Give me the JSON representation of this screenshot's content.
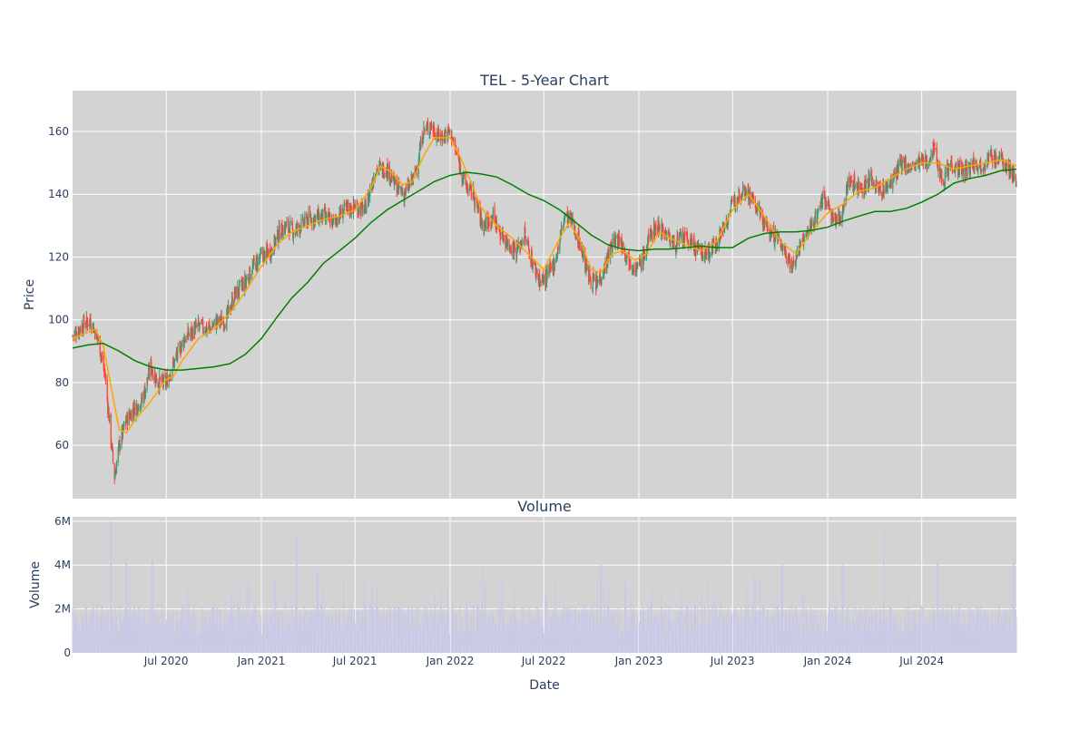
{
  "chart_data": [
    {
      "type": "candlestick",
      "title": "TEL - 5-Year Chart",
      "xlabel": "",
      "ylabel": "Price",
      "x_range": [
        "2020-01-02",
        "2024-12-31"
      ],
      "ylim": [
        43,
        173
      ],
      "y_ticks": [
        60,
        80,
        100,
        120,
        140,
        160
      ],
      "x_tick_labels": [
        "Jul 2020",
        "Jan 2021",
        "Jul 2021",
        "Jan 2022",
        "Jul 2022",
        "Jan 2023",
        "Jul 2023",
        "Jan 2024",
        "Jul 2024"
      ],
      "x_tick_dates": [
        "2020-07-01",
        "2021-01-01",
        "2021-07-01",
        "2022-01-01",
        "2022-07-01",
        "2023-01-01",
        "2023-07-01",
        "2024-01-01",
        "2024-07-01"
      ],
      "grid": true,
      "legend": "none",
      "colors": {
        "background": "#d3d3d3",
        "grid": "#ffffff",
        "increasing": "#3d9970",
        "decreasing": "#ff4136",
        "ma_short": "#ffa500",
        "ma_long": "#008000"
      },
      "price_path": [
        [
          "2020-01-02",
          95
        ],
        [
          "2020-01-20",
          98
        ],
        [
          "2020-02-05",
          100
        ],
        [
          "2020-02-20",
          94
        ],
        [
          "2020-03-05",
          82
        ],
        [
          "2020-03-16",
          62
        ],
        [
          "2020-03-23",
          50
        ],
        [
          "2020-04-01",
          60
        ],
        [
          "2020-04-15",
          68
        ],
        [
          "2020-05-01",
          72
        ],
        [
          "2020-05-15",
          74
        ],
        [
          "2020-06-01",
          85
        ],
        [
          "2020-06-15",
          80
        ],
        [
          "2020-07-01",
          80
        ],
        [
          "2020-07-20",
          88
        ],
        [
          "2020-08-05",
          94
        ],
        [
          "2020-09-01",
          98
        ],
        [
          "2020-09-20",
          97
        ],
        [
          "2020-10-05",
          99
        ],
        [
          "2020-10-25",
          100
        ],
        [
          "2020-11-10",
          108
        ],
        [
          "2020-12-01",
          112
        ],
        [
          "2020-12-20",
          118
        ],
        [
          "2021-01-01",
          120
        ],
        [
          "2021-01-20",
          122
        ],
        [
          "2021-02-05",
          128
        ],
        [
          "2021-02-20",
          130
        ],
        [
          "2021-03-05",
          128
        ],
        [
          "2021-04-01",
          132
        ],
        [
          "2021-05-01",
          133
        ],
        [
          "2021-05-20",
          131
        ],
        [
          "2021-06-10",
          135
        ],
        [
          "2021-07-01",
          136
        ],
        [
          "2021-07-20",
          135
        ],
        [
          "2021-08-10",
          148
        ],
        [
          "2021-09-01",
          148
        ],
        [
          "2021-09-20",
          142
        ],
        [
          "2021-10-05",
          140
        ],
        [
          "2021-10-25",
          146
        ],
        [
          "2021-11-10",
          160
        ],
        [
          "2021-11-25",
          162
        ],
        [
          "2021-12-10",
          158
        ],
        [
          "2022-01-01",
          160
        ],
        [
          "2022-01-15",
          152
        ],
        [
          "2022-01-30",
          143
        ],
        [
          "2022-02-15",
          140
        ],
        [
          "2022-03-05",
          130
        ],
        [
          "2022-03-25",
          133
        ],
        [
          "2022-04-10",
          127
        ],
        [
          "2022-04-25",
          124
        ],
        [
          "2022-05-10",
          122
        ],
        [
          "2022-05-25",
          127
        ],
        [
          "2022-06-10",
          118
        ],
        [
          "2022-06-25",
          112
        ],
        [
          "2022-07-10",
          114
        ],
        [
          "2022-07-25",
          120
        ],
        [
          "2022-08-10",
          133
        ],
        [
          "2022-08-25",
          131
        ],
        [
          "2022-09-10",
          124
        ],
        [
          "2022-09-25",
          114
        ],
        [
          "2022-10-10",
          111
        ],
        [
          "2022-10-25",
          116
        ],
        [
          "2022-11-10",
          124
        ],
        [
          "2022-11-25",
          126
        ],
        [
          "2022-12-10",
          120
        ],
        [
          "2022-12-28",
          116
        ],
        [
          "2023-01-10",
          120
        ],
        [
          "2023-01-25",
          128
        ],
        [
          "2023-02-10",
          130
        ],
        [
          "2023-02-25",
          127
        ],
        [
          "2023-03-10",
          124
        ],
        [
          "2023-03-25",
          126
        ],
        [
          "2023-04-10",
          125
        ],
        [
          "2023-04-25",
          122
        ],
        [
          "2023-05-10",
          121
        ],
        [
          "2023-05-25",
          123
        ],
        [
          "2023-06-10",
          128
        ],
        [
          "2023-06-25",
          134
        ],
        [
          "2023-07-10",
          140
        ],
        [
          "2023-07-25",
          142
        ],
        [
          "2023-08-10",
          138
        ],
        [
          "2023-08-25",
          133
        ],
        [
          "2023-09-10",
          128
        ],
        [
          "2023-09-25",
          126
        ],
        [
          "2023-10-10",
          122
        ],
        [
          "2023-10-25",
          117
        ],
        [
          "2023-11-10",
          124
        ],
        [
          "2023-11-25",
          128
        ],
        [
          "2023-12-10",
          133
        ],
        [
          "2023-12-25",
          140
        ],
        [
          "2024-01-10",
          132
        ],
        [
          "2024-01-25",
          132
        ],
        [
          "2024-02-10",
          144
        ],
        [
          "2024-02-25",
          143
        ],
        [
          "2024-03-10",
          142
        ],
        [
          "2024-03-25",
          145
        ],
        [
          "2024-04-10",
          141
        ],
        [
          "2024-04-25",
          142
        ],
        [
          "2024-05-10",
          146
        ],
        [
          "2024-05-25",
          150
        ],
        [
          "2024-06-10",
          148
        ],
        [
          "2024-06-25",
          150
        ],
        [
          "2024-07-10",
          150
        ],
        [
          "2024-07-25",
          155
        ],
        [
          "2024-08-10",
          144
        ],
        [
          "2024-08-25",
          150
        ],
        [
          "2024-09-10",
          148
        ],
        [
          "2024-09-25",
          147
        ],
        [
          "2024-10-10",
          150
        ],
        [
          "2024-10-25",
          149
        ],
        [
          "2024-11-10",
          152
        ],
        [
          "2024-11-25",
          151
        ],
        [
          "2024-12-10",
          150
        ],
        [
          "2024-12-31",
          144
        ]
      ],
      "ma_short": [
        [
          "2020-01-02",
          94
        ],
        [
          "2020-02-01",
          96
        ],
        [
          "2020-02-15",
          97
        ],
        [
          "2020-03-01",
          92
        ],
        [
          "2020-03-15",
          80
        ],
        [
          "2020-04-01",
          65
        ],
        [
          "2020-04-15",
          64
        ],
        [
          "2020-05-01",
          68
        ],
        [
          "2020-06-01",
          74
        ],
        [
          "2020-07-01",
          81
        ],
        [
          "2020-07-15",
          82
        ],
        [
          "2020-08-01",
          87
        ],
        [
          "2020-09-01",
          94
        ],
        [
          "2020-10-01",
          97
        ],
        [
          "2020-11-01",
          102
        ],
        [
          "2020-12-01",
          109
        ],
        [
          "2021-01-01",
          117
        ],
        [
          "2021-02-01",
          124
        ],
        [
          "2021-03-01",
          128
        ],
        [
          "2021-04-01",
          130
        ],
        [
          "2021-05-01",
          132
        ],
        [
          "2021-06-01",
          133
        ],
        [
          "2021-07-01",
          135
        ],
        [
          "2021-08-01",
          142
        ],
        [
          "2021-08-20",
          149
        ],
        [
          "2021-09-10",
          147
        ],
        [
          "2021-10-01",
          143
        ],
        [
          "2021-10-20",
          144
        ],
        [
          "2021-11-10",
          152
        ],
        [
          "2021-12-01",
          158
        ],
        [
          "2022-01-01",
          158
        ],
        [
          "2022-01-20",
          152
        ],
        [
          "2022-02-10",
          144
        ],
        [
          "2022-03-01",
          136
        ],
        [
          "2022-04-01",
          130
        ],
        [
          "2022-05-01",
          126
        ],
        [
          "2022-06-01",
          121
        ],
        [
          "2022-07-01",
          116
        ],
        [
          "2022-08-01",
          126
        ],
        [
          "2022-08-20",
          131
        ],
        [
          "2022-09-10",
          125
        ],
        [
          "2022-10-01",
          116
        ],
        [
          "2022-10-20",
          115
        ],
        [
          "2022-11-10",
          121
        ],
        [
          "2022-12-01",
          122
        ],
        [
          "2022-12-25",
          119
        ],
        [
          "2023-01-15",
          121
        ],
        [
          "2023-02-10",
          128
        ],
        [
          "2023-03-01",
          126
        ],
        [
          "2023-04-01",
          124
        ],
        [
          "2023-05-01",
          122
        ],
        [
          "2023-06-01",
          125
        ],
        [
          "2023-07-01",
          135
        ],
        [
          "2023-08-01",
          140
        ],
        [
          "2023-09-01",
          133
        ],
        [
          "2023-10-01",
          125
        ],
        [
          "2023-11-01",
          121
        ],
        [
          "2023-12-01",
          128
        ],
        [
          "2024-01-01",
          134
        ],
        [
          "2024-02-01",
          137
        ],
        [
          "2024-03-01",
          141
        ],
        [
          "2024-04-01",
          142
        ],
        [
          "2024-05-01",
          145
        ],
        [
          "2024-06-01",
          148
        ],
        [
          "2024-07-01",
          150
        ],
        [
          "2024-08-01",
          150
        ],
        [
          "2024-09-01",
          148
        ],
        [
          "2024-10-01",
          149
        ],
        [
          "2024-11-01",
          150
        ],
        [
          "2024-12-01",
          151
        ],
        [
          "2024-12-31",
          149
        ]
      ],
      "ma_long": [
        [
          "2020-01-02",
          91
        ],
        [
          "2020-02-01",
          92
        ],
        [
          "2020-03-01",
          92.5
        ],
        [
          "2020-04-01",
          90
        ],
        [
          "2020-05-01",
          87
        ],
        [
          "2020-06-01",
          85
        ],
        [
          "2020-07-01",
          84
        ],
        [
          "2020-08-01",
          84
        ],
        [
          "2020-09-01",
          84.5
        ],
        [
          "2020-10-01",
          85
        ],
        [
          "2020-11-01",
          86
        ],
        [
          "2020-12-01",
          89
        ],
        [
          "2021-01-01",
          94
        ],
        [
          "2021-02-01",
          101
        ],
        [
          "2021-03-01",
          107
        ],
        [
          "2021-04-01",
          112
        ],
        [
          "2021-05-01",
          118
        ],
        [
          "2021-06-01",
          122
        ],
        [
          "2021-07-01",
          126
        ],
        [
          "2021-08-01",
          131
        ],
        [
          "2021-09-01",
          135
        ],
        [
          "2021-10-01",
          138
        ],
        [
          "2021-11-01",
          141
        ],
        [
          "2021-12-01",
          144
        ],
        [
          "2022-01-01",
          146
        ],
        [
          "2022-02-01",
          147
        ],
        [
          "2022-03-01",
          146.5
        ],
        [
          "2022-04-01",
          145.5
        ],
        [
          "2022-05-01",
          143
        ],
        [
          "2022-06-01",
          140
        ],
        [
          "2022-07-01",
          138
        ],
        [
          "2022-08-01",
          135
        ],
        [
          "2022-09-01",
          131
        ],
        [
          "2022-10-01",
          127
        ],
        [
          "2022-11-01",
          124
        ],
        [
          "2022-12-01",
          122.5
        ],
        [
          "2023-01-01",
          122
        ],
        [
          "2023-02-01",
          122.5
        ],
        [
          "2023-03-01",
          122.5
        ],
        [
          "2023-04-01",
          123
        ],
        [
          "2023-05-01",
          123.5
        ],
        [
          "2023-06-01",
          123
        ],
        [
          "2023-07-01",
          123
        ],
        [
          "2023-08-01",
          126
        ],
        [
          "2023-09-01",
          127.5
        ],
        [
          "2023-10-01",
          128
        ],
        [
          "2023-11-01",
          128
        ],
        [
          "2023-12-01",
          128.5
        ],
        [
          "2024-01-01",
          129.5
        ],
        [
          "2024-02-01",
          131.5
        ],
        [
          "2024-03-01",
          133
        ],
        [
          "2024-04-01",
          134.5
        ],
        [
          "2024-05-01",
          134.5
        ],
        [
          "2024-06-01",
          135.5
        ],
        [
          "2024-07-01",
          137.5
        ],
        [
          "2024-08-01",
          140
        ],
        [
          "2024-09-01",
          143.5
        ],
        [
          "2024-10-01",
          145
        ],
        [
          "2024-11-01",
          146
        ],
        [
          "2024-12-01",
          147.5
        ],
        [
          "2024-12-31",
          148
        ]
      ]
    },
    {
      "type": "bar",
      "title": "Volume",
      "xlabel": "Date",
      "ylabel": "Volume",
      "ylim": [
        0,
        6200000
      ],
      "y_ticks": [
        0,
        2000000,
        4000000,
        6000000
      ],
      "y_tick_labels": [
        "0",
        "2M",
        "4M",
        "6M"
      ],
      "x_tick_labels": [
        "Jul 2020",
        "Jan 2021",
        "Jul 2021",
        "Jan 2022",
        "Jul 2022",
        "Jan 2023",
        "Jul 2023",
        "Jan 2024",
        "Jul 2024"
      ],
      "x_tick_dates": [
        "2020-07-01",
        "2021-01-01",
        "2021-07-01",
        "2022-01-01",
        "2022-07-01",
        "2023-01-01",
        "2023-07-01",
        "2024-01-01",
        "2024-07-01"
      ],
      "grid": true,
      "colors": {
        "bar": "#c8c8e8",
        "background": "#d3d3d3"
      },
      "volume_peaks": [
        [
          "2020-03-16",
          6000000
        ],
        [
          "2020-04-15",
          4300000
        ],
        [
          "2020-06-05",
          4300000
        ],
        [
          "2021-03-10",
          5200000
        ],
        [
          "2021-04-20",
          3700000
        ],
        [
          "2022-03-05",
          4000000
        ],
        [
          "2022-10-20",
          4000000
        ],
        [
          "2023-10-05",
          4000000
        ],
        [
          "2024-01-30",
          4000000
        ],
        [
          "2024-04-20",
          5700000
        ],
        [
          "2024-08-01",
          4200000
        ],
        [
          "2024-12-25",
          4200000
        ]
      ],
      "volume_typical": 1600000
    }
  ]
}
